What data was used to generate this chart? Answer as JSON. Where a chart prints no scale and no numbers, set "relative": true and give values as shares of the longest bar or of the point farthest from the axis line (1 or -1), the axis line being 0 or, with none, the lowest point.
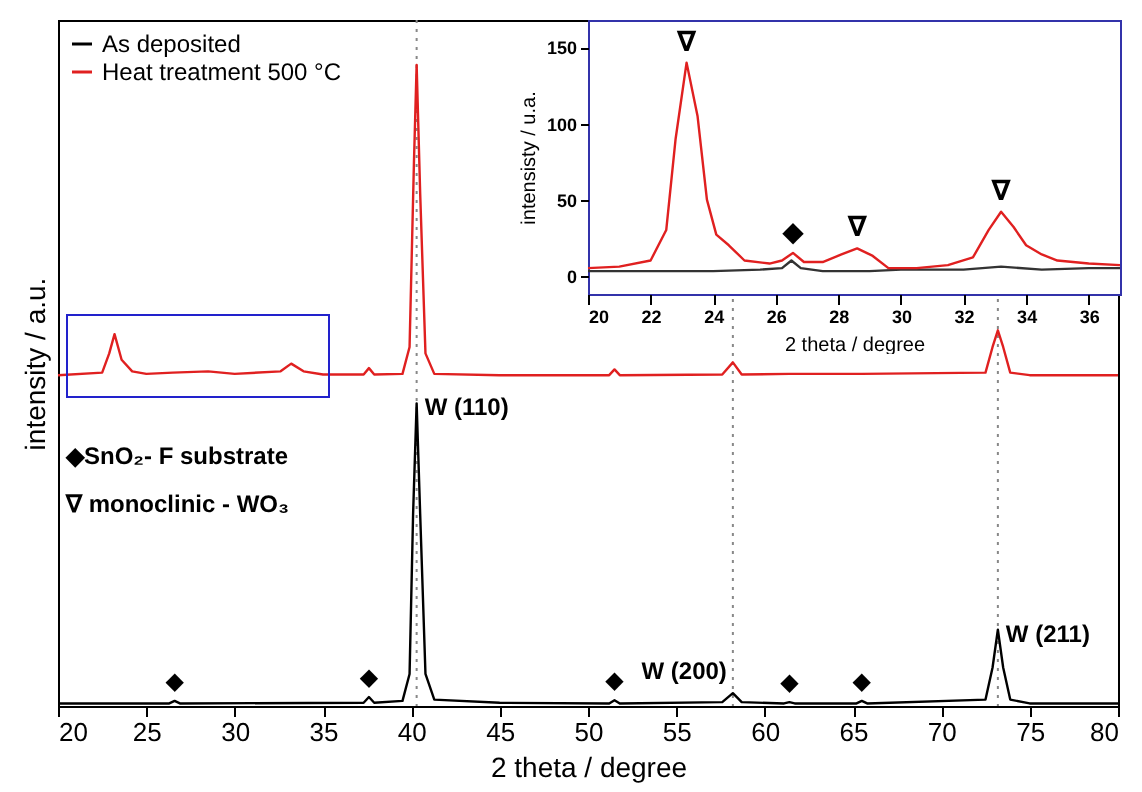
{
  "chart_data": [
    {
      "type": "line",
      "relative": true,
      "xlabel": "2 theta / degree",
      "ylabel": "intensity / a.u.",
      "xlim": [
        20,
        80
      ],
      "xticks": [
        20,
        25,
        30,
        35,
        40,
        45,
        50,
        55,
        60,
        65,
        70,
        75,
        80
      ],
      "tick_labels": "x",
      "legend": "top left",
      "marker": "none",
      "grid": false,
      "series": [
        {
          "name": "As deposited",
          "color": "#000000",
          "x": [
            20,
            26.3,
            26.6,
            26.9,
            37.3,
            37.6,
            37.9,
            39.5,
            39.9,
            40.1,
            40.3,
            40.5,
            40.8,
            41.3,
            45,
            51.2,
            51.5,
            51.8,
            57.6,
            58.2,
            58.7,
            61.1,
            61.4,
            61.7,
            65.2,
            65.5,
            65.8,
            72.5,
            72.9,
            73.2,
            73.5,
            73.9,
            75,
            80
          ],
          "values": [
            0.004,
            0.004,
            0.008,
            0.004,
            0.005,
            0.014,
            0.005,
            0.008,
            0.05,
            0.3,
            0.472,
            0.3,
            0.05,
            0.01,
            0.005,
            0.004,
            0.009,
            0.004,
            0.006,
            0.02,
            0.006,
            0.004,
            0.006,
            0.004,
            0.004,
            0.008,
            0.004,
            0.01,
            0.06,
            0.119,
            0.06,
            0.01,
            0.004,
            0.004
          ]
        },
        {
          "name": "Heat treatment 500 °C",
          "color": "#e02020",
          "x": [
            20,
            22.5,
            22.9,
            23.2,
            23.6,
            24.2,
            25,
            26.5,
            28.5,
            30,
            32.6,
            33.2,
            33.9,
            35,
            37.3,
            37.6,
            37.9,
            39.5,
            39.9,
            40.15,
            40.3,
            40.5,
            40.8,
            41.3,
            45,
            51.2,
            51.5,
            51.8,
            57.6,
            58.2,
            58.7,
            61.4,
            65.5,
            72.5,
            72.9,
            73.2,
            73.5,
            73.9,
            75,
            80
          ],
          "values": [
            0.516,
            0.52,
            0.55,
            0.58,
            0.54,
            0.522,
            0.518,
            0.52,
            0.522,
            0.518,
            0.522,
            0.534,
            0.522,
            0.517,
            0.517,
            0.527,
            0.517,
            0.518,
            0.56,
            0.85,
            1.0,
            0.8,
            0.55,
            0.518,
            0.516,
            0.516,
            0.525,
            0.516,
            0.517,
            0.536,
            0.517,
            0.518,
            0.518,
            0.52,
            0.56,
            0.586,
            0.56,
            0.52,
            0.516,
            0.516
          ]
        }
      ],
      "ref_lines": [
        {
          "axis": "x",
          "value": 40.3,
          "color": "#888888",
          "line_style": "dotted"
        },
        {
          "axis": "x",
          "value": 58.2,
          "color": "#888888",
          "line_style": "dotted"
        },
        {
          "axis": "x",
          "value": 73.2,
          "color": "#888888",
          "line_style": "dotted"
        }
      ],
      "annotations": [
        {
          "text": "W (110)",
          "x": 40.3,
          "y": 0.472
        },
        {
          "text": "W (200)",
          "x": 58.2,
          "y": 0.02
        },
        {
          "text": "W (211)",
          "x": 73.2,
          "y": 0.119
        },
        {
          "text": "◆",
          "x": 26.6,
          "y": 0.008
        },
        {
          "text": "◆",
          "x": 37.6,
          "y": 0.014
        },
        {
          "text": "◆",
          "x": 51.5,
          "y": 0.009
        },
        {
          "text": "◆",
          "x": 61.4,
          "y": 0.006
        },
        {
          "text": "◆",
          "x": 65.5,
          "y": 0.008
        },
        "◆SnO₂- F substrate",
        "∇ monoclinic - WO₃"
      ]
    },
    {
      "type": "line",
      "xlabel": "2 theta / degree",
      "ylabel": "intensisty / u.a.",
      "xlim": [
        20,
        37
      ],
      "xticks": [
        20,
        22,
        24,
        26,
        28,
        30,
        32,
        34,
        36
      ],
      "ylim": [
        -12,
        168
      ],
      "yticks": [
        0,
        50,
        100,
        150
      ],
      "marker": "none",
      "grid": false,
      "series": [
        {
          "color": "#333333",
          "x": [
            20,
            22,
            24,
            25.5,
            26.2,
            26.5,
            26.8,
            27.5,
            29,
            30,
            32,
            33.2,
            34.5,
            36,
            37
          ],
          "values": [
            3,
            3,
            3,
            4,
            5,
            10,
            5,
            3,
            3,
            4,
            4,
            6,
            4,
            5,
            5
          ]
        },
        {
          "color": "#e02020",
          "x": [
            20,
            21,
            22,
            22.5,
            22.8,
            23.15,
            23.5,
            23.8,
            24.1,
            24.5,
            25,
            25.8,
            26.2,
            26.55,
            26.9,
            27.5,
            28.1,
            28.6,
            29.1,
            29.6,
            30.5,
            31.5,
            32.3,
            32.8,
            33.2,
            33.6,
            34,
            34.5,
            35,
            36,
            37
          ],
          "values": [
            5,
            6,
            10,
            30,
            90,
            140,
            105,
            50,
            27,
            20,
            10,
            8,
            10,
            15,
            9,
            9,
            14,
            18,
            13,
            5,
            5,
            7,
            12,
            30,
            42,
            32,
            20,
            14,
            10,
            8,
            7
          ]
        }
      ],
      "annotations": [
        {
          "text": "∇",
          "x": 23.15,
          "y": 140
        },
        {
          "text": "◆",
          "x": 26.55,
          "y": 15
        },
        {
          "text": "∇",
          "x": 28.6,
          "y": 18
        },
        {
          "text": "∇",
          "x": 33.2,
          "y": 42
        }
      ]
    }
  ]
}
